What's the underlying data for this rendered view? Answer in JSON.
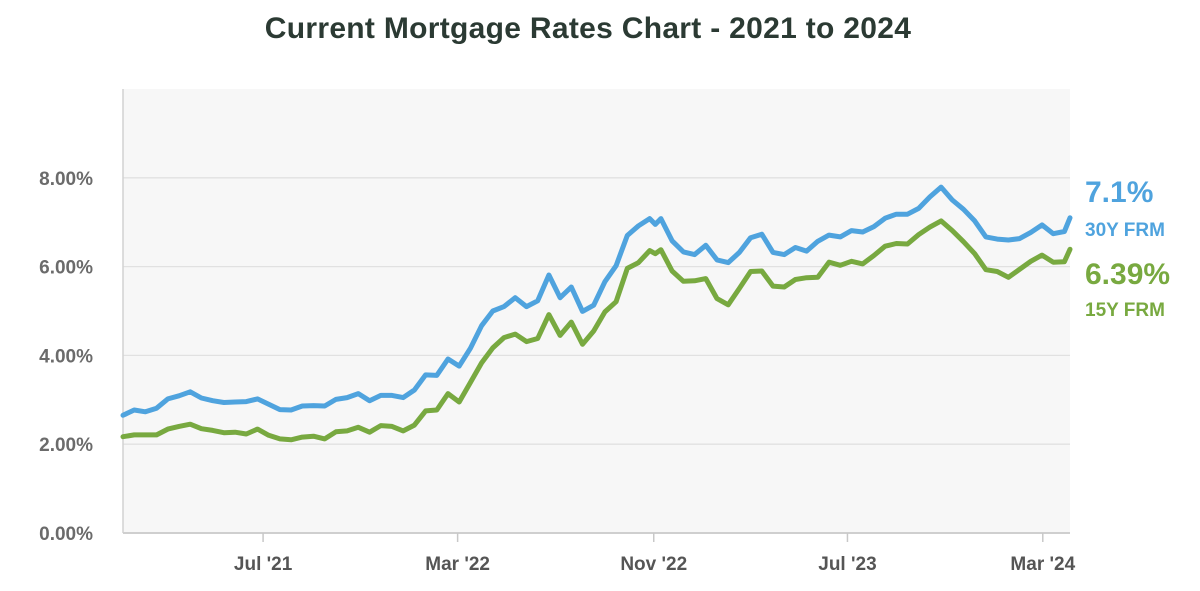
{
  "chart_data": {
    "type": "line",
    "title": "Current Mortgage Rates Chart - 2021 to 2024",
    "xlabel": "",
    "ylabel": "",
    "ylim": [
      0,
      10
    ],
    "y_ticks": [
      {
        "value": 0,
        "label": "0.00%"
      },
      {
        "value": 2,
        "label": "2.00%"
      },
      {
        "value": 4,
        "label": "4.00%"
      },
      {
        "value": 6,
        "label": "6.00%"
      },
      {
        "value": 8,
        "label": "8.00%"
      }
    ],
    "x_range": [
      "2021-01-07",
      "2024-04-04"
    ],
    "x_ticks": [
      {
        "date": "2021-07-01",
        "label": "Jul '21"
      },
      {
        "date": "2022-03-01",
        "label": "Mar '22"
      },
      {
        "date": "2022-11-01",
        "label": "Nov '22"
      },
      {
        "date": "2023-07-01",
        "label": "Jul '23"
      },
      {
        "date": "2024-03-01",
        "label": "Mar '24"
      }
    ],
    "grid": true,
    "series": [
      {
        "name": "30Y FRM",
        "end_label_value": "7.1%",
        "end_label_name": "30Y FRM",
        "color": "#4fa3de",
        "points": [
          [
            "2021-01-07",
            2.65
          ],
          [
            "2021-01-21",
            2.77
          ],
          [
            "2021-02-04",
            2.73
          ],
          [
            "2021-02-18",
            2.81
          ],
          [
            "2021-03-04",
            3.02
          ],
          [
            "2021-03-18",
            3.09
          ],
          [
            "2021-04-01",
            3.18
          ],
          [
            "2021-04-15",
            3.04
          ],
          [
            "2021-04-29",
            2.98
          ],
          [
            "2021-05-13",
            2.94
          ],
          [
            "2021-05-27",
            2.95
          ],
          [
            "2021-06-10",
            2.96
          ],
          [
            "2021-06-24",
            3.02
          ],
          [
            "2021-07-08",
            2.9
          ],
          [
            "2021-07-22",
            2.78
          ],
          [
            "2021-08-05",
            2.77
          ],
          [
            "2021-08-19",
            2.86
          ],
          [
            "2021-09-02",
            2.87
          ],
          [
            "2021-09-16",
            2.86
          ],
          [
            "2021-09-30",
            3.01
          ],
          [
            "2021-10-14",
            3.05
          ],
          [
            "2021-10-28",
            3.14
          ],
          [
            "2021-11-11",
            2.98
          ],
          [
            "2021-11-25",
            3.1
          ],
          [
            "2021-12-09",
            3.1
          ],
          [
            "2021-12-23",
            3.05
          ],
          [
            "2022-01-06",
            3.22
          ],
          [
            "2022-01-20",
            3.56
          ],
          [
            "2022-02-03",
            3.55
          ],
          [
            "2022-02-17",
            3.92
          ],
          [
            "2022-03-03",
            3.76
          ],
          [
            "2022-03-17",
            4.16
          ],
          [
            "2022-03-31",
            4.67
          ],
          [
            "2022-04-14",
            5.0
          ],
          [
            "2022-04-28",
            5.1
          ],
          [
            "2022-05-12",
            5.3
          ],
          [
            "2022-05-26",
            5.1
          ],
          [
            "2022-06-09",
            5.23
          ],
          [
            "2022-06-23",
            5.81
          ],
          [
            "2022-07-07",
            5.3
          ],
          [
            "2022-07-21",
            5.54
          ],
          [
            "2022-08-04",
            4.99
          ],
          [
            "2022-08-18",
            5.13
          ],
          [
            "2022-09-01",
            5.66
          ],
          [
            "2022-09-15",
            6.02
          ],
          [
            "2022-09-29",
            6.7
          ],
          [
            "2022-10-13",
            6.92
          ],
          [
            "2022-10-27",
            7.08
          ],
          [
            "2022-11-03",
            6.95
          ],
          [
            "2022-11-10",
            7.08
          ],
          [
            "2022-11-24",
            6.58
          ],
          [
            "2022-12-08",
            6.33
          ],
          [
            "2022-12-22",
            6.27
          ],
          [
            "2023-01-05",
            6.48
          ],
          [
            "2023-01-19",
            6.15
          ],
          [
            "2023-02-02",
            6.09
          ],
          [
            "2023-02-16",
            6.32
          ],
          [
            "2023-03-02",
            6.65
          ],
          [
            "2023-03-16",
            6.73
          ],
          [
            "2023-03-30",
            6.32
          ],
          [
            "2023-04-13",
            6.27
          ],
          [
            "2023-04-27",
            6.43
          ],
          [
            "2023-05-11",
            6.35
          ],
          [
            "2023-05-25",
            6.57
          ],
          [
            "2023-06-08",
            6.71
          ],
          [
            "2023-06-22",
            6.67
          ],
          [
            "2023-07-06",
            6.81
          ],
          [
            "2023-07-20",
            6.78
          ],
          [
            "2023-08-03",
            6.9
          ],
          [
            "2023-08-17",
            7.09
          ],
          [
            "2023-08-31",
            7.18
          ],
          [
            "2023-09-14",
            7.18
          ],
          [
            "2023-09-28",
            7.31
          ],
          [
            "2023-10-12",
            7.57
          ],
          [
            "2023-10-26",
            7.79
          ],
          [
            "2023-11-09",
            7.5
          ],
          [
            "2023-11-23",
            7.29
          ],
          [
            "2023-12-07",
            7.03
          ],
          [
            "2023-12-21",
            6.67
          ],
          [
            "2024-01-04",
            6.62
          ],
          [
            "2024-01-18",
            6.6
          ],
          [
            "2024-02-01",
            6.63
          ],
          [
            "2024-02-15",
            6.77
          ],
          [
            "2024-02-29",
            6.94
          ],
          [
            "2024-03-14",
            6.74
          ],
          [
            "2024-03-28",
            6.79
          ],
          [
            "2024-04-04",
            7.1
          ]
        ]
      },
      {
        "name": "15Y FRM",
        "end_label_value": "6.39%",
        "end_label_name": "15Y FRM",
        "color": "#78a940",
        "points": [
          [
            "2021-01-07",
            2.17
          ],
          [
            "2021-01-21",
            2.21
          ],
          [
            "2021-02-04",
            2.21
          ],
          [
            "2021-02-18",
            2.21
          ],
          [
            "2021-03-04",
            2.34
          ],
          [
            "2021-03-18",
            2.4
          ],
          [
            "2021-04-01",
            2.45
          ],
          [
            "2021-04-15",
            2.35
          ],
          [
            "2021-04-29",
            2.31
          ],
          [
            "2021-05-13",
            2.26
          ],
          [
            "2021-05-27",
            2.27
          ],
          [
            "2021-06-10",
            2.23
          ],
          [
            "2021-06-24",
            2.34
          ],
          [
            "2021-07-08",
            2.2
          ],
          [
            "2021-07-22",
            2.12
          ],
          [
            "2021-08-05",
            2.1
          ],
          [
            "2021-08-19",
            2.16
          ],
          [
            "2021-09-02",
            2.18
          ],
          [
            "2021-09-16",
            2.12
          ],
          [
            "2021-09-30",
            2.28
          ],
          [
            "2021-10-14",
            2.3
          ],
          [
            "2021-10-28",
            2.38
          ],
          [
            "2021-11-11",
            2.27
          ],
          [
            "2021-11-25",
            2.42
          ],
          [
            "2021-12-09",
            2.4
          ],
          [
            "2021-12-23",
            2.3
          ],
          [
            "2022-01-06",
            2.43
          ],
          [
            "2022-01-20",
            2.75
          ],
          [
            "2022-02-03",
            2.77
          ],
          [
            "2022-02-17",
            3.14
          ],
          [
            "2022-03-03",
            2.95
          ],
          [
            "2022-03-17",
            3.39
          ],
          [
            "2022-03-31",
            3.83
          ],
          [
            "2022-04-14",
            4.17
          ],
          [
            "2022-04-28",
            4.4
          ],
          [
            "2022-05-12",
            4.48
          ],
          [
            "2022-05-26",
            4.31
          ],
          [
            "2022-06-09",
            4.38
          ],
          [
            "2022-06-23",
            4.92
          ],
          [
            "2022-07-07",
            4.45
          ],
          [
            "2022-07-21",
            4.75
          ],
          [
            "2022-08-04",
            4.25
          ],
          [
            "2022-08-18",
            4.55
          ],
          [
            "2022-09-01",
            4.98
          ],
          [
            "2022-09-15",
            5.21
          ],
          [
            "2022-09-29",
            5.96
          ],
          [
            "2022-10-13",
            6.09
          ],
          [
            "2022-10-27",
            6.36
          ],
          [
            "2022-11-03",
            6.29
          ],
          [
            "2022-11-10",
            6.38
          ],
          [
            "2022-11-24",
            5.9
          ],
          [
            "2022-12-08",
            5.67
          ],
          [
            "2022-12-22",
            5.68
          ],
          [
            "2023-01-05",
            5.73
          ],
          [
            "2023-01-19",
            5.28
          ],
          [
            "2023-02-02",
            5.14
          ],
          [
            "2023-02-16",
            5.51
          ],
          [
            "2023-03-02",
            5.89
          ],
          [
            "2023-03-16",
            5.9
          ],
          [
            "2023-03-30",
            5.56
          ],
          [
            "2023-04-13",
            5.54
          ],
          [
            "2023-04-27",
            5.71
          ],
          [
            "2023-05-11",
            5.75
          ],
          [
            "2023-05-25",
            5.76
          ],
          [
            "2023-06-08",
            6.1
          ],
          [
            "2023-06-22",
            6.03
          ],
          [
            "2023-07-06",
            6.12
          ],
          [
            "2023-07-20",
            6.06
          ],
          [
            "2023-08-03",
            6.25
          ],
          [
            "2023-08-17",
            6.46
          ],
          [
            "2023-08-31",
            6.52
          ],
          [
            "2023-09-14",
            6.51
          ],
          [
            "2023-09-28",
            6.72
          ],
          [
            "2023-10-12",
            6.89
          ],
          [
            "2023-10-26",
            7.03
          ],
          [
            "2023-11-09",
            6.81
          ],
          [
            "2023-11-23",
            6.56
          ],
          [
            "2023-12-07",
            6.29
          ],
          [
            "2023-12-21",
            5.93
          ],
          [
            "2024-01-04",
            5.89
          ],
          [
            "2024-01-18",
            5.76
          ],
          [
            "2024-02-01",
            5.94
          ],
          [
            "2024-02-15",
            6.12
          ],
          [
            "2024-02-29",
            6.26
          ],
          [
            "2024-03-14",
            6.1
          ],
          [
            "2024-03-28",
            6.11
          ],
          [
            "2024-04-04",
            6.39
          ]
        ]
      }
    ]
  }
}
